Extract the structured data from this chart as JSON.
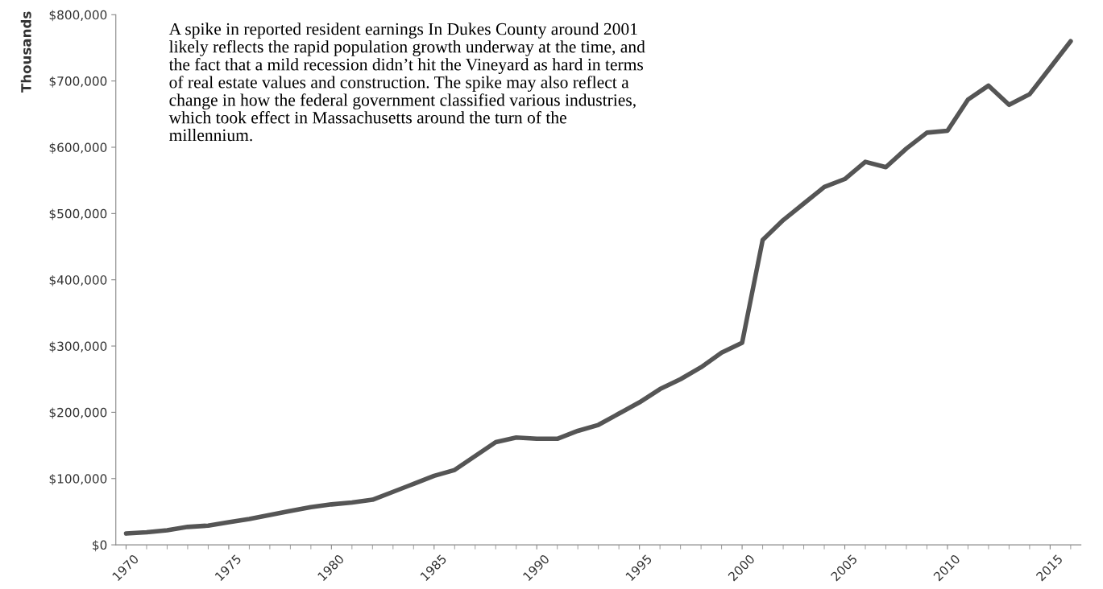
{
  "chart_data": {
    "type": "line",
    "ylabel": "Thousands",
    "annotations": [
      "A spike in reported resident earnings In Dukes County around 2001 likely reflects the rapid population growth underway at the time, and the fact that a mild recession didn’t hit the Vineyard as hard in terms of real estate values and construction. The spike may also reflect a change in how the federal government classified various industries, which took effect in Massachusetts around the turn of the millennium."
    ],
    "x": [
      1970,
      1971,
      1972,
      1973,
      1974,
      1975,
      1976,
      1977,
      1978,
      1979,
      1980,
      1981,
      1982,
      1983,
      1984,
      1985,
      1986,
      1987,
      1988,
      1989,
      1990,
      1991,
      1992,
      1993,
      1994,
      1995,
      1996,
      1997,
      1998,
      1999,
      2000,
      2001,
      2002,
      2003,
      2004,
      2005,
      2006,
      2007,
      2008,
      2009,
      2010,
      2011,
      2012,
      2013,
      2014,
      2015,
      2016
    ],
    "series": [
      {
        "color": "#555555",
        "values": [
          17000,
          19000,
          22000,
          27000,
          29000,
          34000,
          39000,
          45000,
          51000,
          57000,
          61000,
          64000,
          68000,
          80000,
          92000,
          104000,
          113000,
          134000,
          155000,
          162000,
          160000,
          160000,
          172000,
          181000,
          198000,
          215000,
          235000,
          250000,
          268000,
          290000,
          305000,
          460000,
          490000,
          515000,
          540000,
          552000,
          578000,
          570000,
          598000,
          622000,
          625000,
          672000,
          693000,
          664000,
          680000,
          720000,
          760000
        ]
      }
    ],
    "xlim": [
      1969.5,
      2016.5
    ],
    "xticks": [
      1970,
      1975,
      1980,
      1985,
      1990,
      1995,
      2000,
      2005,
      2010,
      2015
    ],
    "ylim": [
      0,
      800000
    ],
    "yticks": [
      {
        "value": 0,
        "label": "$0"
      },
      {
        "value": 100000,
        "label": "$100,000"
      },
      {
        "value": 200000,
        "label": "$200,000"
      },
      {
        "value": 300000,
        "label": "$300,000"
      },
      {
        "value": 400000,
        "label": "$400,000"
      },
      {
        "value": 500000,
        "label": "$500,000"
      },
      {
        "value": 600000,
        "label": "$600,000"
      },
      {
        "value": 700000,
        "label": "$700,000"
      },
      {
        "value": 800000,
        "label": "$800,000"
      }
    ],
    "grid": false,
    "legend": false,
    "marker": "none",
    "line_style": "solid"
  }
}
